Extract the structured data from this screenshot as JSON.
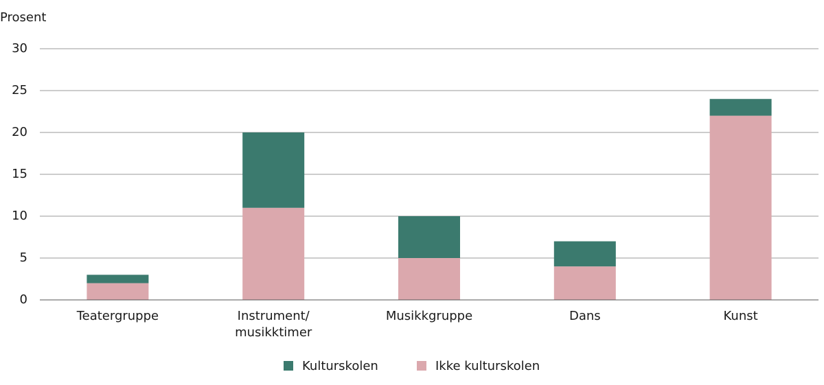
{
  "chart_data": {
    "type": "stacked-bar",
    "y_label": "Prosent",
    "categories": [
      "Teatergruppe",
      "Instrument/\nmusikktimer",
      "Musikkgruppe",
      "Dans",
      "Kunst"
    ],
    "series": [
      {
        "name": "Kulturskolen",
        "color": "#3b7a6e",
        "values": [
          1,
          9,
          5,
          3,
          2
        ]
      },
      {
        "name": "Ikke kulturskolen",
        "color": "#dba8ad",
        "values": [
          2,
          11,
          5,
          4,
          22
        ]
      }
    ],
    "ylim": [
      0,
      30
    ],
    "yticks": [
      0,
      5,
      10,
      15,
      20,
      25,
      30
    ],
    "grid": true,
    "legend": "bottom"
  }
}
